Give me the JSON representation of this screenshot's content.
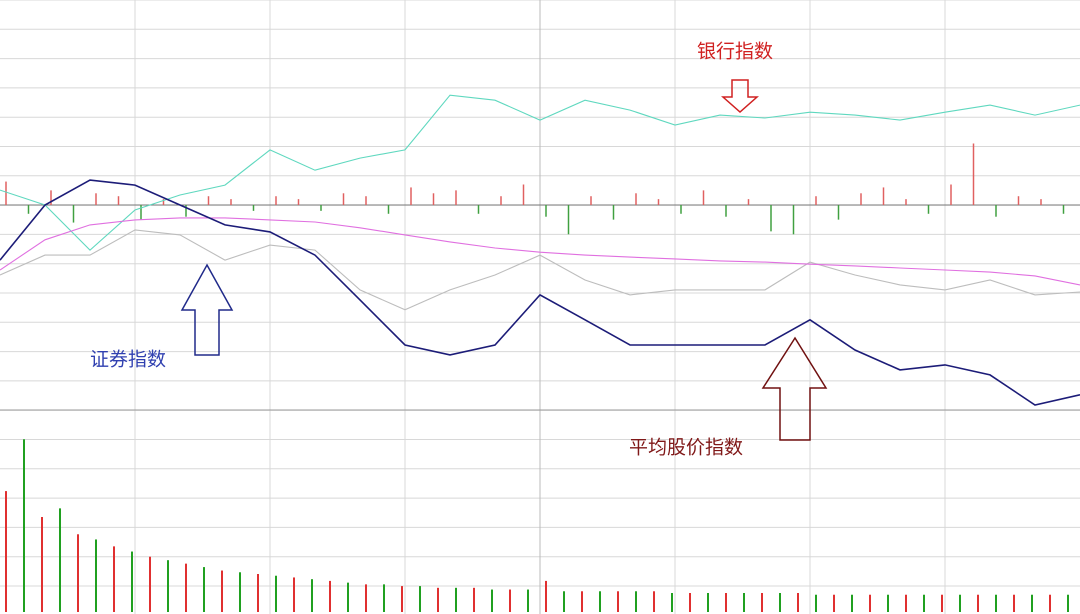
{
  "chart_data": {
    "type": "line",
    "x": [
      0,
      10,
      20,
      30,
      40,
      50,
      60,
      70,
      80,
      90,
      100,
      110,
      120,
      130,
      140,
      150,
      160,
      170,
      180,
      190,
      200,
      210,
      220,
      230,
      240
    ],
    "xlim": [
      0,
      240
    ],
    "ylim": [
      -7,
      7
    ],
    "series": [
      {
        "color": "#5fd8bf",
        "values": [
          0.51,
          0,
          -1.54,
          -0.17,
          0.34,
          0.68,
          1.88,
          1.19,
          1.6,
          1.88,
          3.75,
          3.58,
          2.9,
          3.58,
          3.24,
          2.73,
          3.07,
          2.97,
          3.17,
          3.07,
          2.9,
          3.17,
          3.41,
          3.07,
          3.41
        ]
      },
      {
        "color": "#bdbdbd",
        "values": [
          -2.39,
          -1.71,
          -1.71,
          -0.85,
          -1.02,
          -1.88,
          -1.37,
          -1.54,
          -2.9,
          -3.58,
          -2.9,
          -2.39,
          -1.71,
          -2.56,
          -3.07,
          -2.9,
          -2.9,
          -2.9,
          -1.95,
          -2.39,
          -2.73,
          -2.9,
          -2.56,
          -3.07,
          -2.97
        ]
      },
      {
        "color": "#e070e0",
        "values": [
          -2.22,
          -1.19,
          -0.68,
          -0.51,
          -0.44,
          -0.44,
          -0.51,
          -0.58,
          -0.78,
          -1.02,
          -1.26,
          -1.47,
          -1.61,
          -1.71,
          -1.78,
          -1.84,
          -1.91,
          -1.95,
          -2.02,
          -2.08,
          -2.15,
          -2.22,
          -2.29,
          -2.42,
          -2.73
        ]
      },
      {
        "color": "#1c1c78",
        "values": [
          -1.88,
          0,
          0.85,
          0.68,
          0,
          -0.68,
          -0.92,
          -1.71,
          -3.24,
          -4.78,
          -5.12,
          -4.78,
          -3.07,
          -3.92,
          -4.78,
          -4.78,
          -4.78,
          -4.78,
          -3.92,
          -4.95,
          -5.63,
          -5.46,
          -5.8,
          -6.83,
          -6.48
        ]
      }
    ],
    "delta_bars": {
      "x": [
        0,
        5,
        10,
        15,
        20,
        25,
        30,
        35,
        40,
        45,
        50,
        55,
        60,
        65,
        70,
        75,
        80,
        85,
        90,
        95,
        100,
        105,
        110,
        115,
        120,
        125,
        130,
        135,
        140,
        145,
        150,
        155,
        160,
        165,
        170,
        175,
        180,
        185,
        190,
        195,
        200,
        205,
        210,
        215,
        220,
        225,
        230,
        235
      ],
      "values": [
        0.8,
        -0.3,
        0.5,
        -0.6,
        0.4,
        0.3,
        -0.5,
        0.2,
        -0.4,
        0.3,
        0.2,
        -0.2,
        0.3,
        0.2,
        -0.2,
        0.4,
        0.3,
        -0.3,
        0.6,
        0.4,
        0.5,
        -0.3,
        0.3,
        0.7,
        -0.4,
        -1.0,
        0.3,
        -0.5,
        0.4,
        0.2,
        -0.3,
        0.5,
        -0.4,
        0.2,
        -0.9,
        -1.0,
        0.3,
        -0.5,
        0.4,
        0.6,
        0.2,
        -0.3,
        0.7,
        2.1,
        -0.4,
        0.3,
        0.2,
        -0.3
      ],
      "up_color": "#e06060",
      "down_color": "#40a040"
    },
    "volume": {
      "ylim": [
        0,
        110
      ],
      "series": [
        {
          "color": "#e03030",
          "x": [
            0,
            8,
            16,
            24,
            32,
            40,
            48,
            56,
            64,
            72,
            80,
            88,
            96,
            104,
            112,
            120,
            128,
            136,
            144,
            152,
            160,
            168,
            176,
            184,
            192,
            200,
            208,
            216,
            224,
            232
          ],
          "values": [
            70,
            55,
            45,
            38,
            32,
            28,
            24,
            22,
            20,
            18,
            16,
            15,
            14,
            14,
            13,
            18,
            12,
            12,
            12,
            11,
            11,
            11,
            11,
            10,
            10,
            10,
            10,
            10,
            10,
            10
          ]
        },
        {
          "color": "#20a020",
          "x": [
            4,
            12,
            20,
            28,
            36,
            44,
            52,
            60,
            68,
            76,
            84,
            92,
            100,
            108,
            116,
            124,
            132,
            140,
            148,
            156,
            164,
            172,
            180,
            188,
            196,
            204,
            212,
            220,
            228,
            236
          ],
          "values": [
            100,
            60,
            42,
            35,
            30,
            26,
            23,
            21,
            19,
            17,
            16,
            15,
            14,
            13,
            13,
            12,
            12,
            12,
            11,
            11,
            11,
            11,
            10,
            10,
            10,
            10,
            10,
            10,
            10,
            10
          ]
        }
      ]
    },
    "annotations": [
      "银行指数",
      "证券指数",
      "平均股价指数"
    ]
  }
}
